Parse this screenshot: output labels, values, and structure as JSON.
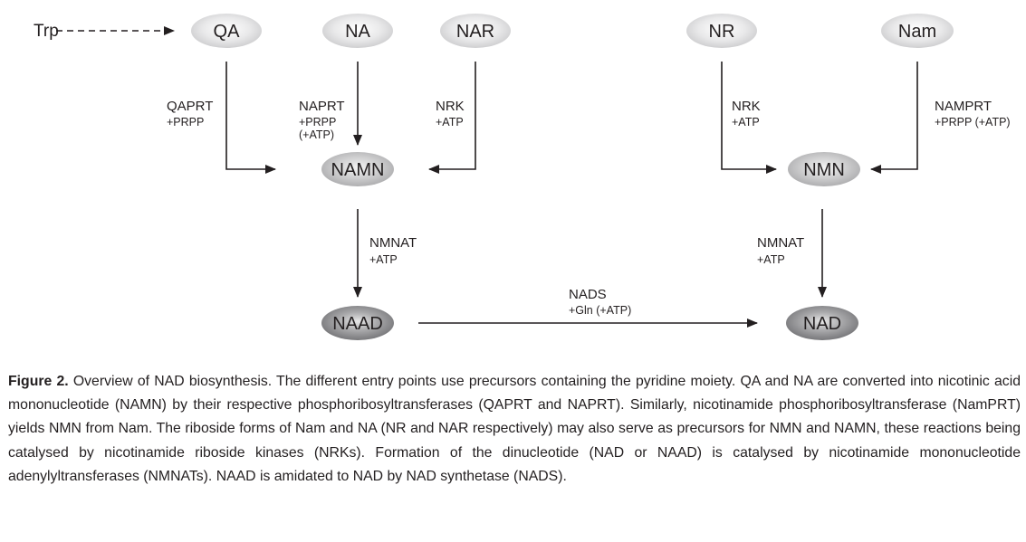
{
  "nodes": {
    "trp": "Trp",
    "qa": "QA",
    "na": "NA",
    "nar": "NAR",
    "nr": "NR",
    "nam": "Nam",
    "namn": "NAMN",
    "nmn": "NMN",
    "naad": "NAAD",
    "nad": "NAD"
  },
  "enzymes": {
    "qaprt": {
      "name": "QAPRT",
      "cofactor": "+PRPP"
    },
    "naprt": {
      "name": "NAPRT",
      "cofactor": "+PRPP",
      "cofactor2": "(+ATP)"
    },
    "nrk_left": {
      "name": "NRK",
      "cofactor": "+ATP"
    },
    "nrk_right": {
      "name": "NRK",
      "cofactor": "+ATP"
    },
    "namprt": {
      "name": "NAMPRT",
      "cofactor": "+PRPP (+ATP)"
    },
    "nmnat_left": {
      "name": "NMNAT",
      "cofactor": "+ATP"
    },
    "nmnat_right": {
      "name": "NMNAT",
      "cofactor": "+ATP"
    },
    "nads": {
      "name": "NADS",
      "cofactor": "+Gln (+ATP)"
    }
  },
  "caption": {
    "label": "Figure 2.",
    "text": "Overview of NAD biosynthesis. The different entry points use precursors containing the pyridine moiety. QA and NA are converted into nicotinic acid mononucleotide (NAMN) by their respective phosphoribosyltransferases (QAPRT and NAPRT). Similarly, nicotinamide phosphoribosyltransferase (NamPRT) yields NMN from Nam. The riboside forms of Nam and NA (NR and NAR respectively) may also serve as precursors for NMN and NAMN, these reactions being catalysed by nicotinamide riboside kinases (NRKs). Formation of the dinucleotide (NAD or NAAD) is catalysed by nicotinamide mononucleotide adenylyltransferases (NMNATs). NAAD is amidated to NAD by NAD synthetase (NADS)."
  }
}
